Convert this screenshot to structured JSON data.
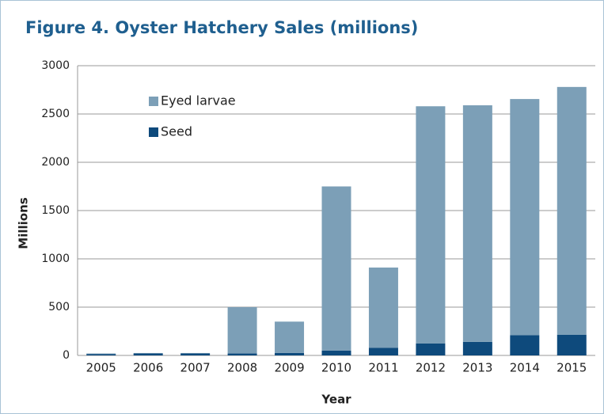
{
  "chart_data": {
    "type": "stacked-bar",
    "title": "Figure 4. Oyster Hatchery Sales (millions)",
    "x_label": "Year",
    "y_label": "Millions",
    "categories": [
      "2005",
      "2006",
      "2007",
      "2008",
      "2009",
      "2010",
      "2011",
      "2012",
      "2013",
      "2014",
      "2015"
    ],
    "series": [
      {
        "name": "Seed",
        "color": "#0e4a7c",
        "values": [
          15,
          20,
          20,
          20,
          25,
          50,
          80,
          125,
          140,
          210,
          215
        ]
      },
      {
        "name": "Eyed larvae",
        "color": "#7c9fb7",
        "values": [
          5,
          5,
          5,
          480,
          325,
          1700,
          830,
          2455,
          2450,
          2445,
          2565
        ]
      }
    ],
    "ylim": [
      0,
      3000
    ],
    "yticks": [
      0,
      500,
      1000,
      1500,
      2000,
      2500,
      3000
    ],
    "grid": true
  }
}
